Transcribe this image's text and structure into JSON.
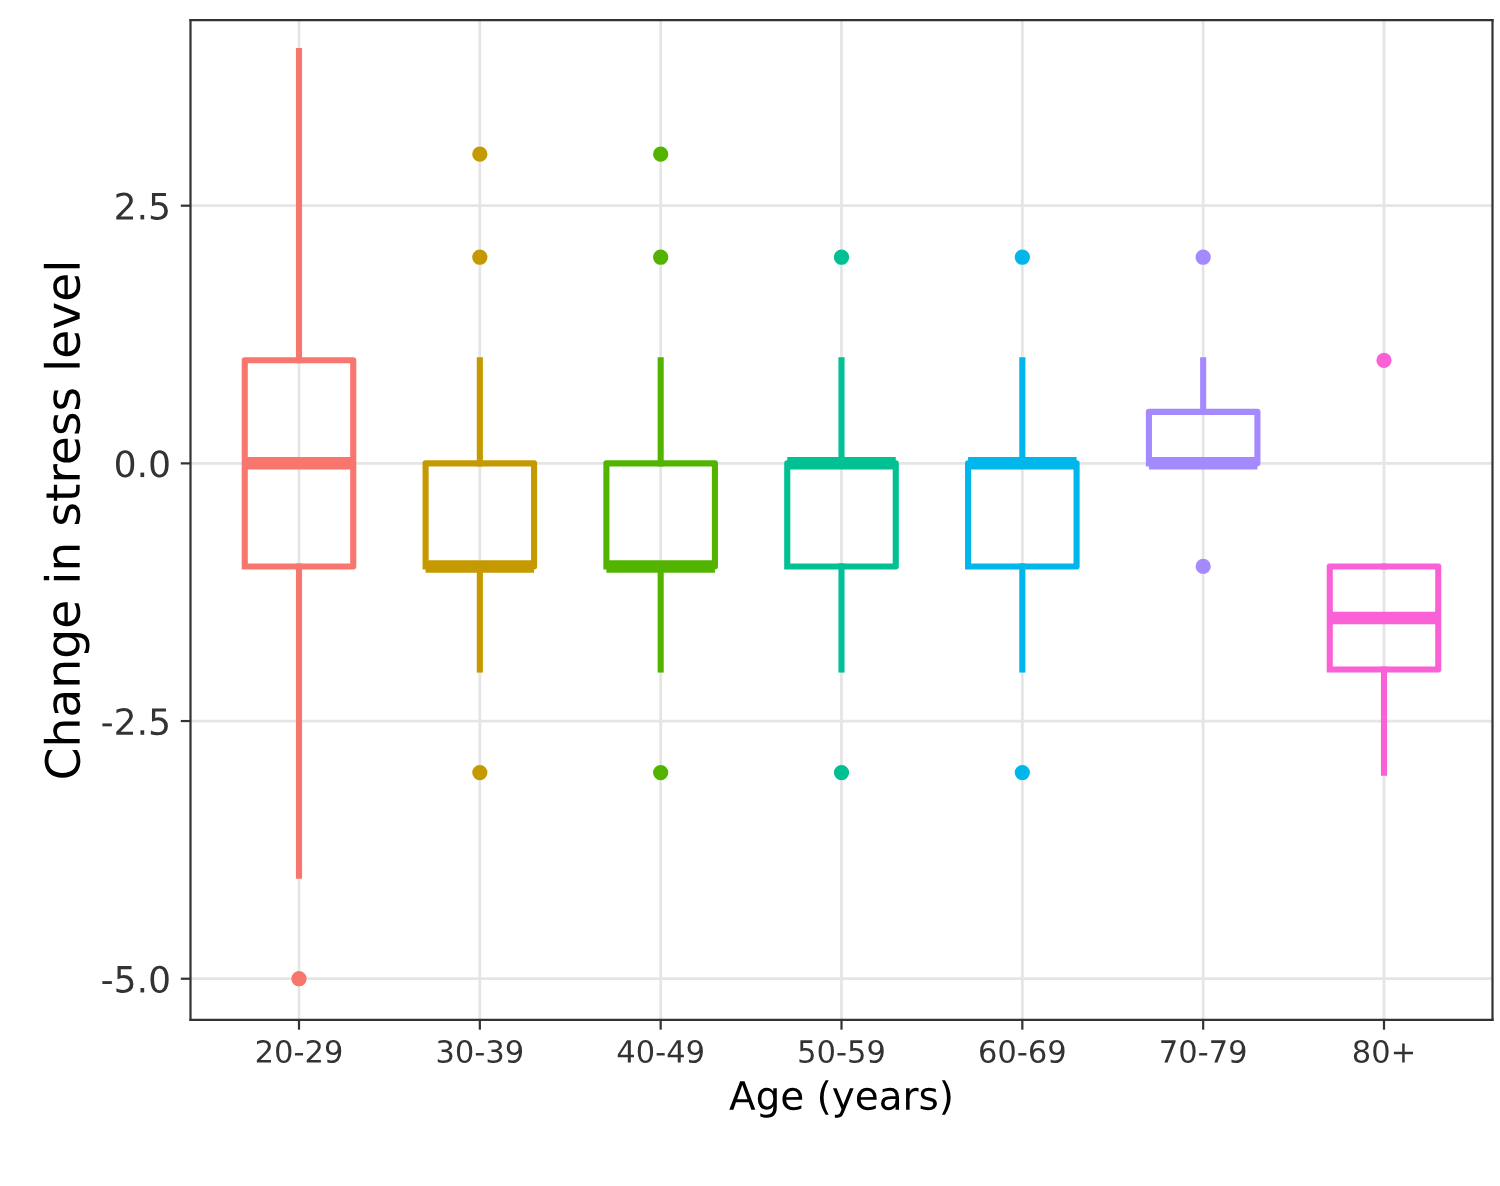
{
  "chart_data": {
    "type": "box",
    "xlabel": "Age (years)",
    "ylabel": "Change in stress level",
    "categories": [
      "20-29",
      "30-39",
      "40-49",
      "50-59",
      "60-69",
      "70-79",
      "80+"
    ],
    "colors": [
      "#f8766d",
      "#c49a00",
      "#53b400",
      "#00c094",
      "#00b6eb",
      "#a58aff",
      "#fb61d7"
    ],
    "boxes": [
      {
        "low": -4,
        "q1": -1,
        "median": 0,
        "q3": 1,
        "high": 4,
        "outliers": [
          -5
        ]
      },
      {
        "low": -2,
        "q1": -1,
        "median": -1,
        "q3": 0,
        "high": 1,
        "outliers": [
          3,
          2,
          -3
        ]
      },
      {
        "low": -2,
        "q1": -1,
        "median": -1,
        "q3": 0,
        "high": 1,
        "outliers": [
          3,
          2,
          -3
        ]
      },
      {
        "low": -2,
        "q1": -1,
        "median": 0,
        "q3": 0,
        "high": 1,
        "outliers": [
          2,
          -3
        ]
      },
      {
        "low": -2,
        "q1": -1,
        "median": 0,
        "q3": 0,
        "high": 1,
        "outliers": [
          2,
          -3
        ]
      },
      {
        "low": 0,
        "q1": 0,
        "median": 0,
        "q3": 0.5,
        "high": 1,
        "outliers": [
          2,
          -1
        ]
      },
      {
        "low": -3,
        "q1": -2,
        "median": -1.5,
        "q3": -1,
        "high": -1,
        "outliers": [
          1
        ]
      }
    ],
    "ylim": [
      -5.4,
      4.3
    ],
    "yticks": [
      {
        "value": -5,
        "label": "-5.0"
      },
      {
        "value": -2.5,
        "label": "-2.5"
      },
      {
        "value": 0,
        "label": "0.0"
      },
      {
        "value": 2.5,
        "label": "2.5"
      }
    ],
    "grid": true
  }
}
